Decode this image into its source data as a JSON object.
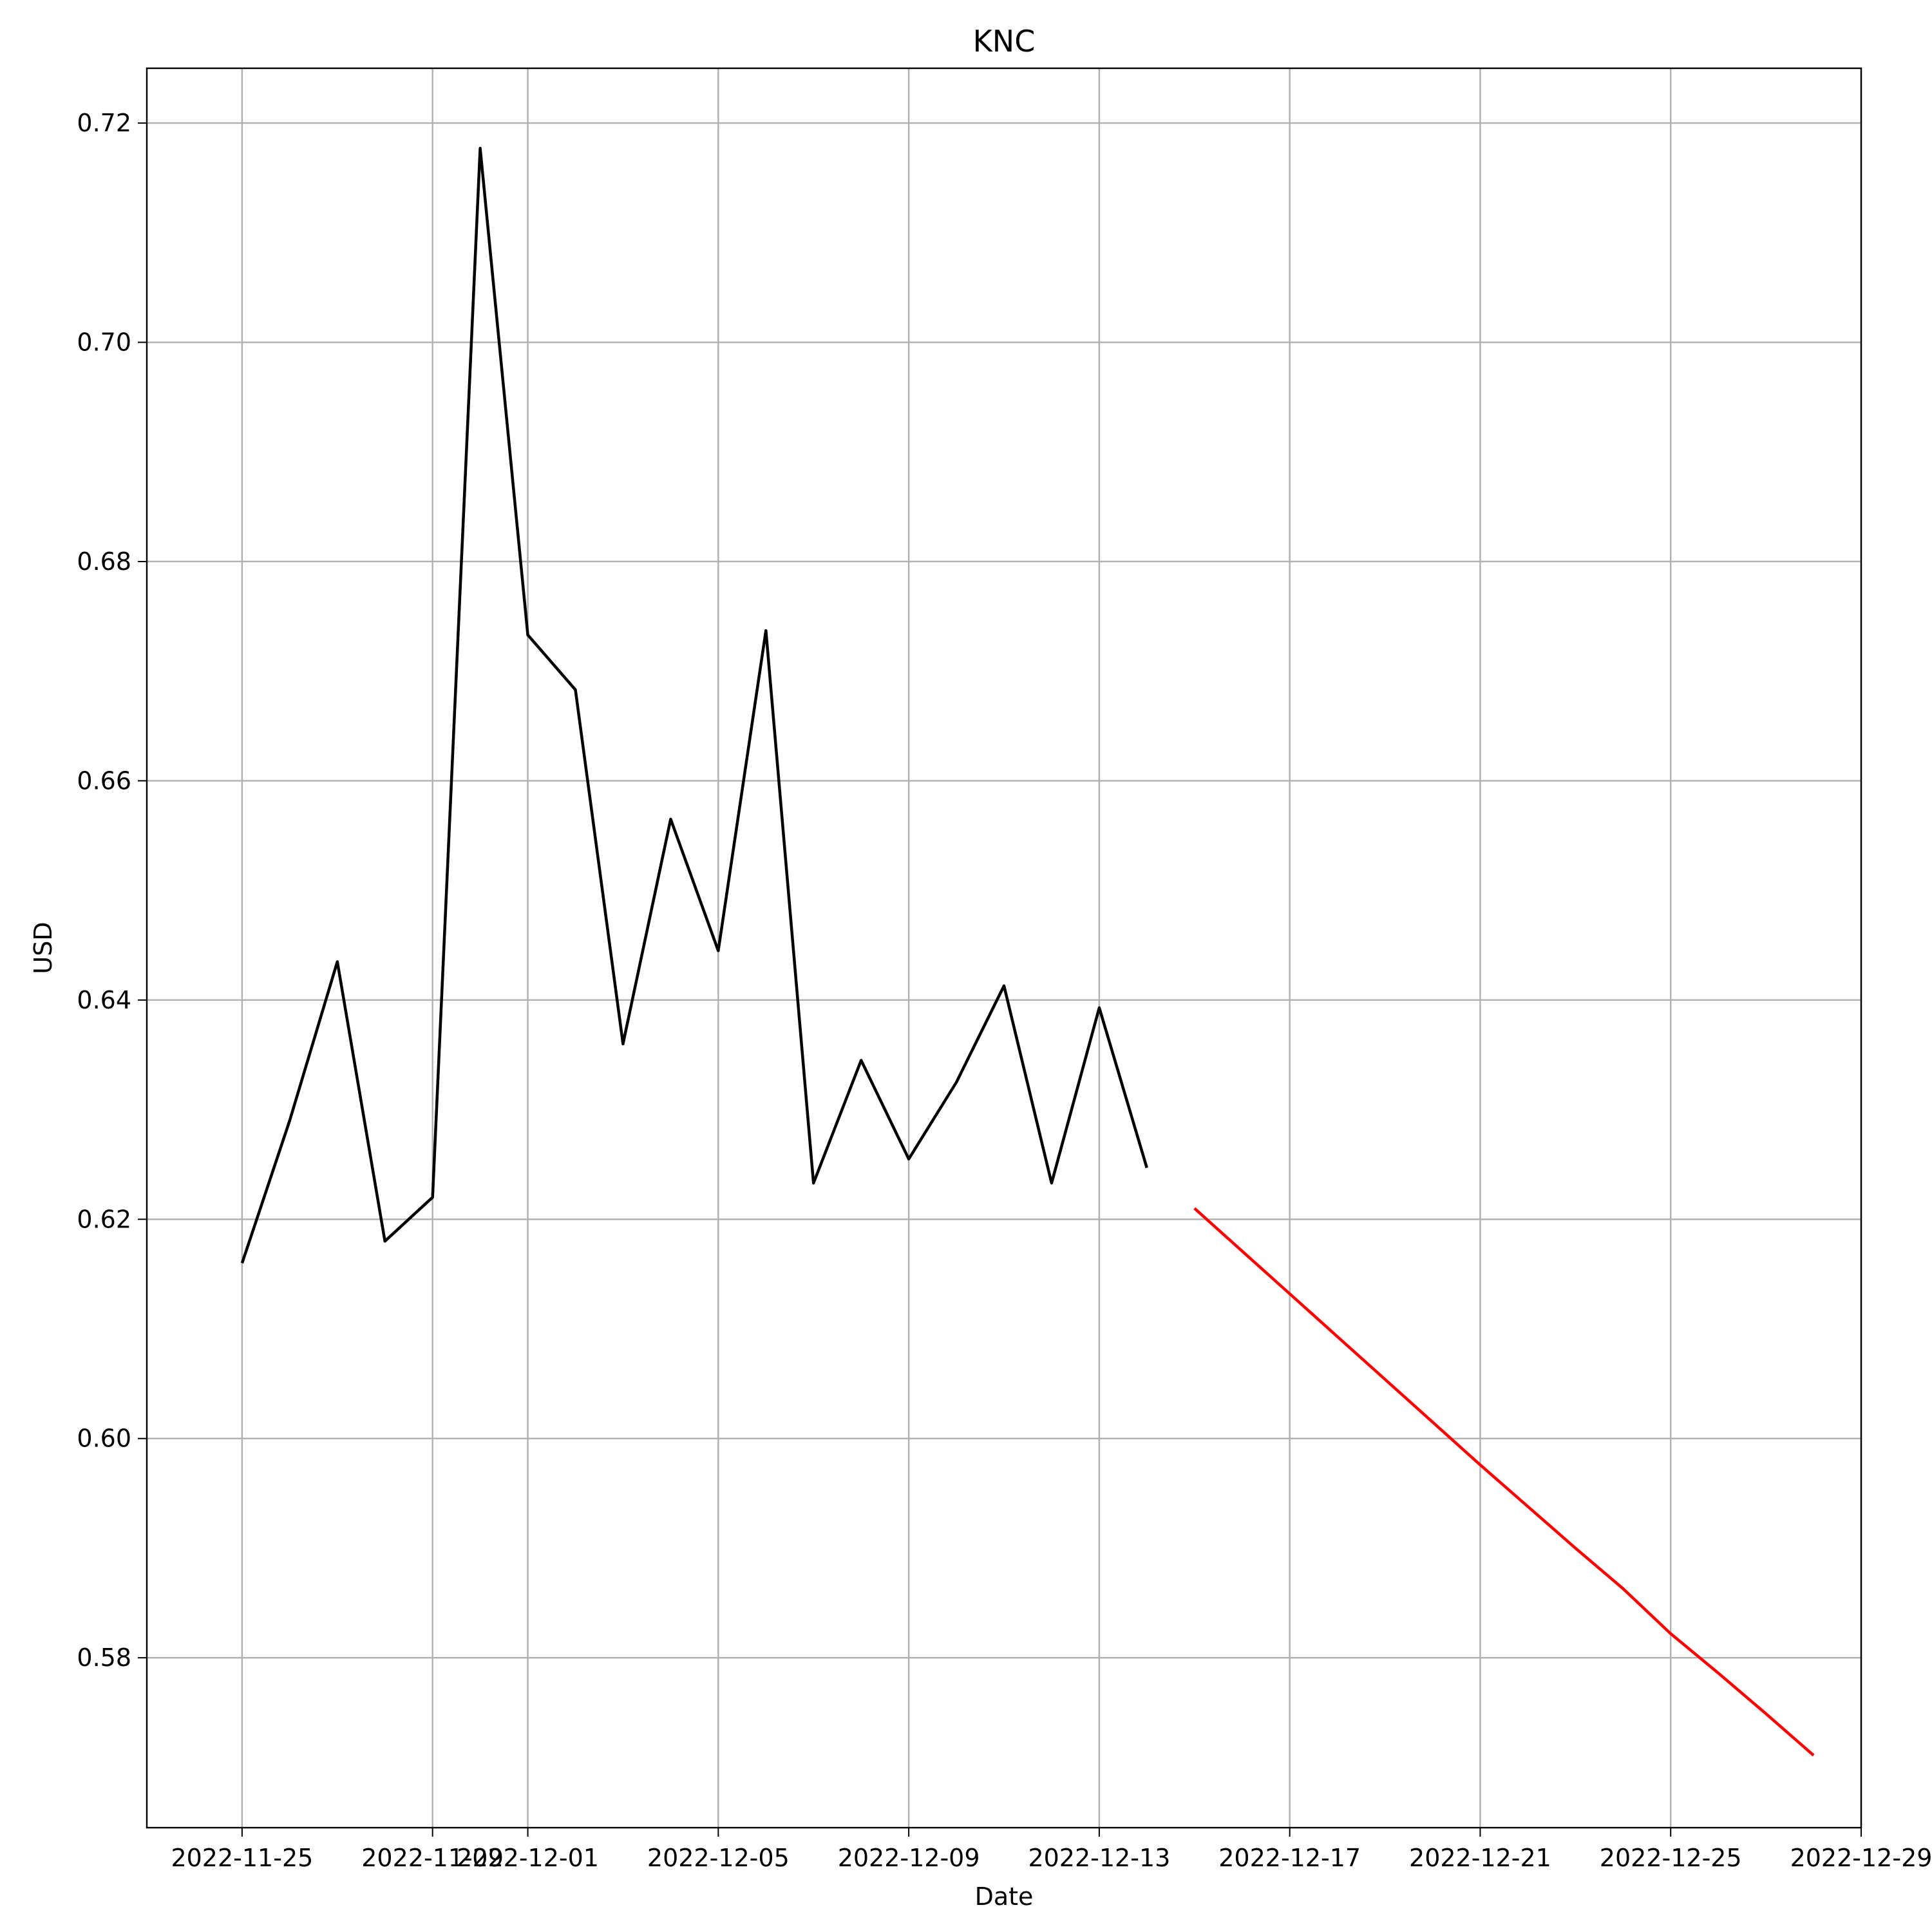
{
  "chart_data": {
    "type": "line",
    "title": "KNC",
    "xlabel": "Date",
    "ylabel": "USD",
    "grid": true,
    "legend": "none",
    "xlim": [
      "2022-11-23",
      "2022-12-29"
    ],
    "ylim": [
      0.5645,
      0.725
    ],
    "xticks": [
      "2022-11-25",
      "2022-11-29",
      "2022-12-01",
      "2022-12-05",
      "2022-12-09",
      "2022-12-13",
      "2022-12-17",
      "2022-12-21",
      "2022-12-25",
      "2022-12-29"
    ],
    "yticks": [
      "0.58",
      "0.60",
      "0.62",
      "0.64",
      "0.66",
      "0.68",
      "0.70",
      "0.72"
    ],
    "series": [
      {
        "color": "#000000",
        "points": [
          {
            "x": "2022-11-25",
            "y": 0.616
          },
          {
            "x": "2022-11-26",
            "y": 0.629
          },
          {
            "x": "2022-11-27",
            "y": 0.6435
          },
          {
            "x": "2022-11-28",
            "y": 0.618
          },
          {
            "x": "2022-11-29",
            "y": 0.622
          },
          {
            "x": "2022-11-30",
            "y": 0.7177
          },
          {
            "x": "2022-12-01",
            "y": 0.6733
          },
          {
            "x": "2022-12-02",
            "y": 0.6683
          },
          {
            "x": "2022-12-03",
            "y": 0.636
          },
          {
            "x": "2022-12-04",
            "y": 0.6565
          },
          {
            "x": "2022-12-05",
            "y": 0.6445
          },
          {
            "x": "2022-12-06",
            "y": 0.6737
          },
          {
            "x": "2022-12-07",
            "y": 0.6233
          },
          {
            "x": "2022-12-08",
            "y": 0.6345
          },
          {
            "x": "2022-12-09",
            "y": 0.6255
          },
          {
            "x": "2022-12-10",
            "y": 0.6325
          },
          {
            "x": "2022-12-11",
            "y": 0.6413
          },
          {
            "x": "2022-12-12",
            "y": 0.6233
          },
          {
            "x": "2022-12-13",
            "y": 0.6393
          },
          {
            "x": "2022-12-14",
            "y": 0.6247
          }
        ]
      },
      {
        "color": "#ff0000",
        "points": [
          {
            "x": "2022-12-15",
            "y": 0.621
          },
          {
            "x": "2022-12-16",
            "y": 0.6171
          },
          {
            "x": "2022-12-17",
            "y": 0.6132
          },
          {
            "x": "2022-12-18",
            "y": 0.6093
          },
          {
            "x": "2022-12-19",
            "y": 0.6054
          },
          {
            "x": "2022-12-20",
            "y": 0.6015
          },
          {
            "x": "2022-12-21",
            "y": 0.5976
          },
          {
            "x": "2022-12-22",
            "y": 0.5938
          },
          {
            "x": "2022-12-23",
            "y": 0.59
          },
          {
            "x": "2022-12-24",
            "y": 0.5863
          },
          {
            "x": "2022-12-25",
            "y": 0.5822
          },
          {
            "x": "2022-12-26",
            "y": 0.5786
          },
          {
            "x": "2022-12-27",
            "y": 0.5749
          },
          {
            "x": "2022-12-28",
            "y": 0.5711
          }
        ]
      }
    ]
  }
}
